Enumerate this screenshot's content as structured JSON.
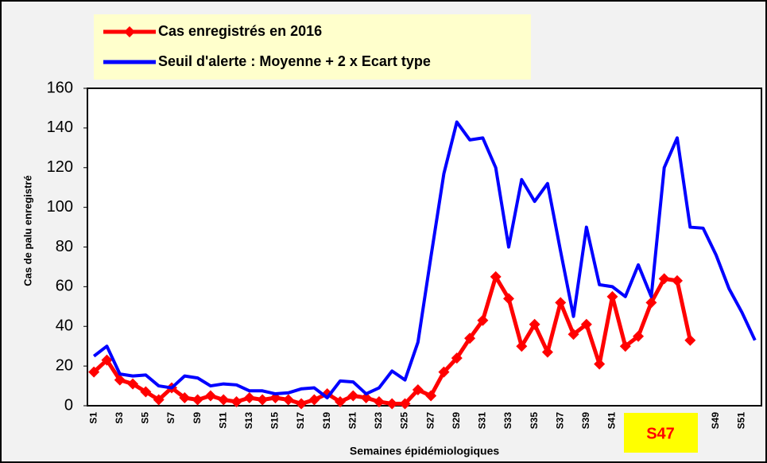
{
  "chart_data": {
    "type": "line",
    "categories": [
      "S1",
      null,
      "S3",
      null,
      "S5",
      null,
      "S7",
      null,
      "S9",
      null,
      "S11",
      null,
      "S13",
      null,
      "S15",
      null,
      "S17",
      null,
      "S19",
      null,
      "S21",
      null,
      "S23",
      null,
      "S25",
      null,
      "S27",
      null,
      "S29",
      null,
      "S31",
      null,
      "S33",
      null,
      "S35",
      null,
      "S37",
      null,
      "S39",
      null,
      "S41",
      null,
      null,
      null,
      null,
      null,
      null,
      null,
      "S49",
      null,
      "S51",
      null
    ],
    "series": [
      {
        "name": "Cas enregistrés en 2016",
        "color": "#ff0000",
        "marker": "diamond",
        "values": [
          17,
          23,
          13,
          11,
          7,
          3,
          9,
          4,
          3,
          5,
          3,
          2,
          4,
          3,
          4,
          3,
          1,
          3,
          6,
          2,
          5,
          4,
          2,
          1,
          1,
          8,
          5,
          17,
          24,
          34,
          43,
          65,
          54,
          30,
          41,
          27,
          52,
          36,
          41,
          21,
          55,
          30,
          35,
          52,
          64,
          63,
          33,
          null,
          null,
          null,
          null,
          null
        ]
      },
      {
        "name": "Seuil d'alerte : Moyenne + 2 x Ecart type",
        "color": "#0000ff",
        "values": [
          25,
          30,
          16,
          15,
          15.5,
          10,
          9,
          15,
          14,
          10,
          11,
          10.5,
          7.5,
          7.5,
          6,
          6.5,
          8.5,
          9,
          4,
          12.5,
          12,
          6,
          9,
          17.5,
          13,
          32,
          75,
          117,
          143,
          134,
          135,
          120,
          80,
          114,
          103,
          112,
          78,
          45,
          90,
          61,
          60,
          55,
          71,
          55,
          120,
          135,
          90,
          89.5,
          76,
          59,
          47,
          33
        ]
      }
    ],
    "ylim": [
      0,
      160
    ],
    "yticks": [
      0,
      20,
      40,
      60,
      80,
      100,
      120,
      140,
      160
    ],
    "y_label": "Cas de palu enregistré",
    "x_label": "Semaines épidémiologiques",
    "annotation": "S47"
  }
}
